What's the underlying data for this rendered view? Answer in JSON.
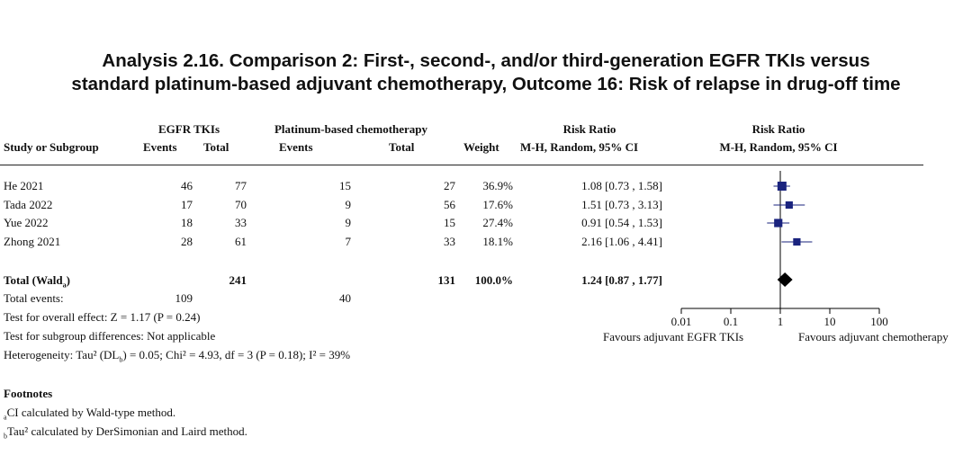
{
  "title_line1": "Analysis 2.16.   Comparison 2: First-, second-, and/or third-generation EGFR TKIs versus",
  "title_line2": "standard platinum-based adjuvant chemotherapy, Outcome 16: Risk of relapse in drug-off time",
  "headers": {
    "group1": "EGFR TKIs",
    "group2": "Platinum-based chemotherapy",
    "rr1": "Risk Ratio",
    "rr2": "Risk Ratio",
    "study": "Study or Subgroup",
    "events1": "Events",
    "total1": "Total",
    "events2": "Events",
    "total2": "Total",
    "weight": "Weight",
    "method1": "M-H, Random, 95% CI",
    "method2": "M-H, Random, 95% CI"
  },
  "total_row": {
    "label": "Total (Wald",
    "label_sup": "a",
    "label_end": ")",
    "total1": "241",
    "total2": "131",
    "weight": "100.0%",
    "ci_text": "1.24 [0.87 , 1.77]"
  },
  "total_events": {
    "label": "Total events:",
    "events1": "109",
    "events2": "40"
  },
  "stats": {
    "overall": "Test for overall effect: Z = 1.17 (P = 0.24)",
    "subgroup": "Test for subgroup differences: Not applicable",
    "hetero_a": "Heterogeneity: Tau² (DL",
    "hetero_sub": "b",
    "hetero_b": ") = 0.05; Chi² = 4.93, df = 3 (P = 0.18); I² = 39%"
  },
  "axis": {
    "ticks": [
      "0.01",
      "0.1",
      "1",
      "10",
      "100"
    ],
    "favours_left": "Favours adjuvant EGFR TKIs",
    "favours_right": "Favours adjuvant chemotherapy"
  },
  "footnotes": {
    "heading": "Footnotes",
    "note_a_mark": "a",
    "note_a": "CI calculated by Wald-type method.",
    "note_b_mark": "b",
    "note_b": "Tau² calculated by DerSimonian and Laird method."
  },
  "chart_data": {
    "type": "forest",
    "scale": "log",
    "xlim": [
      0.01,
      100
    ],
    "reference_line": 1,
    "colors": {
      "study_marker": "#1a237e",
      "pooled_marker": "#000000"
    },
    "studies": [
      {
        "name": "He 2021",
        "events1": "46",
        "total1": "77",
        "events2": "15",
        "total2": "27",
        "weight": "36.9%",
        "rr": 1.08,
        "lo": 0.73,
        "hi": 1.58,
        "ci_text": "1.08 [0.73 , 1.58]"
      },
      {
        "name": "Tada 2022",
        "events1": "17",
        "total1": "70",
        "events2": "9",
        "total2": "56",
        "weight": "17.6%",
        "rr": 1.51,
        "lo": 0.73,
        "hi": 3.13,
        "ci_text": "1.51 [0.73 , 3.13]"
      },
      {
        "name": "Yue 2022",
        "events1": "18",
        "total1": "33",
        "events2": "9",
        "total2": "15",
        "weight": "27.4%",
        "rr": 0.91,
        "lo": 0.54,
        "hi": 1.53,
        "ci_text": "0.91 [0.54 , 1.53]"
      },
      {
        "name": "Zhong 2021",
        "events1": "28",
        "total1": "61",
        "events2": "7",
        "total2": "33",
        "weight": "18.1%",
        "rr": 2.16,
        "lo": 1.06,
        "hi": 4.41,
        "ci_text": "2.16 [1.06 , 4.41]"
      }
    ],
    "pooled": {
      "rr": 1.24,
      "lo": 0.87,
      "hi": 1.77
    }
  }
}
